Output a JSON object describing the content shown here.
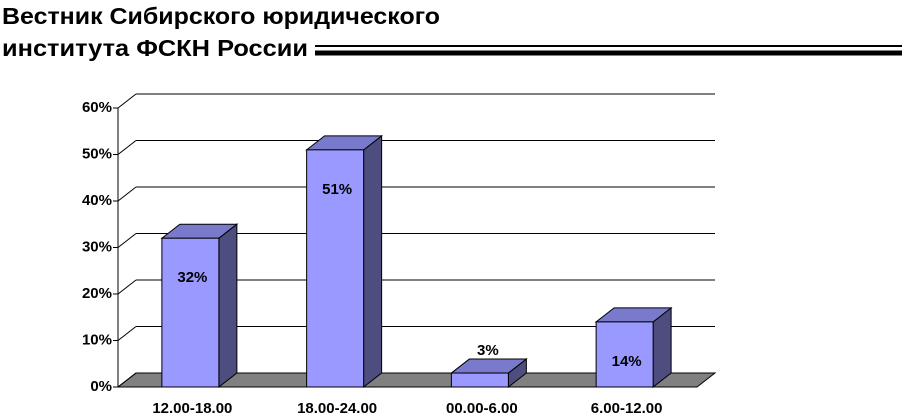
{
  "header": {
    "title_line_1": "Вестник Сибирского юридического",
    "title_line_2": "института ФСКН России"
  },
  "chart_data": {
    "type": "bar3d",
    "categories": [
      "12.00-18.00",
      "18.00-24.00",
      "00.00-6.00",
      "6.00-12.00"
    ],
    "values": [
      32,
      51,
      3,
      14
    ],
    "value_labels": [
      "32%",
      "51%",
      "3%",
      "14%"
    ],
    "color": "#9999ff",
    "ylim": [
      0,
      60
    ],
    "yticks": [
      {
        "value": 0,
        "label": "0%"
      },
      {
        "value": 10,
        "label": "10%"
      },
      {
        "value": 20,
        "label": "20%"
      },
      {
        "value": 30,
        "label": "30%"
      },
      {
        "value": 40,
        "label": "40%"
      },
      {
        "value": 50,
        "label": "50%"
      },
      {
        "value": 60,
        "label": "60%"
      }
    ],
    "grid": true
  }
}
